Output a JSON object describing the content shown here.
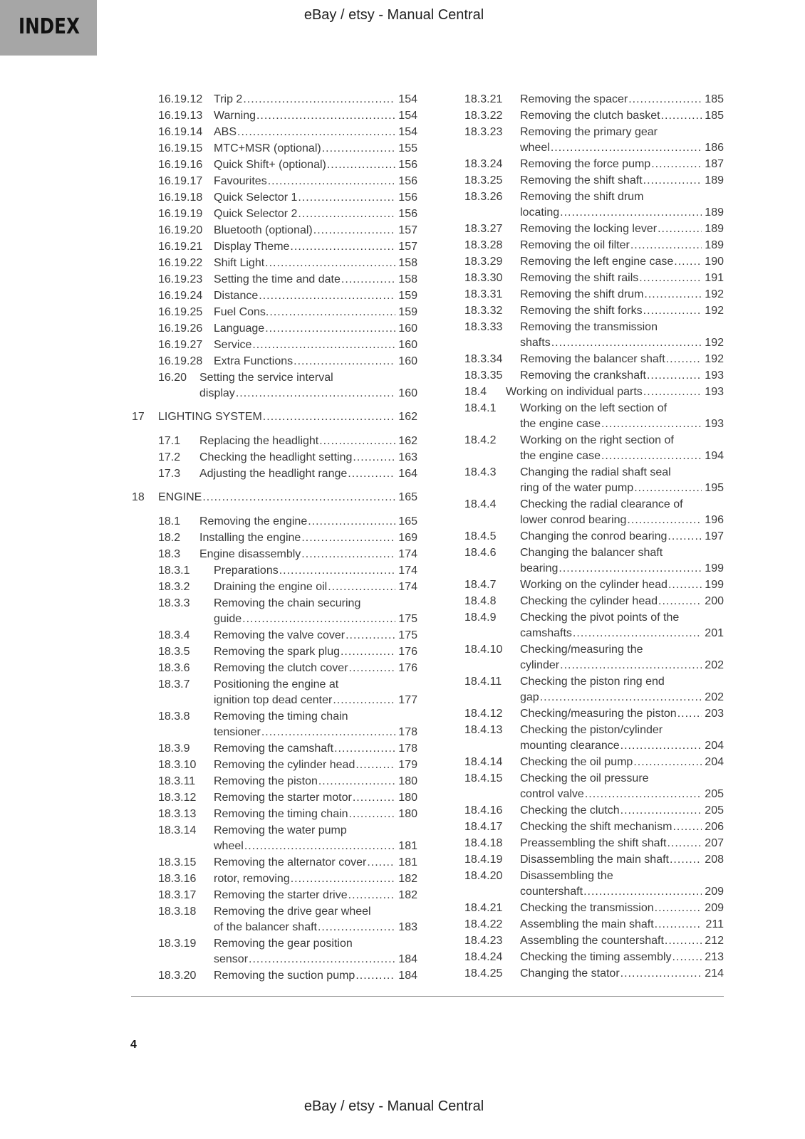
{
  "tab_label": "INDEX",
  "header": "eBay / etsy - Manual Central",
  "footer": "eBay / etsy - Manual Central",
  "page_number": "4",
  "columns": {
    "left": [
      {
        "num": "16.19.12",
        "lines": [
          "Trip 2"
        ],
        "page": "154",
        "level": "l2"
      },
      {
        "num": "16.19.13",
        "lines": [
          "Warning"
        ],
        "page": "154",
        "level": "l2"
      },
      {
        "num": "16.19.14",
        "lines": [
          "ABS"
        ],
        "page": "154",
        "level": "l2"
      },
      {
        "num": "16.19.15",
        "lines": [
          "MTC+MSR (optional)"
        ],
        "page": "155",
        "level": "l2"
      },
      {
        "num": "16.19.16",
        "lines": [
          "Quick Shift+ (optional)"
        ],
        "page": "156",
        "level": "l2"
      },
      {
        "num": "16.19.17",
        "lines": [
          "Favourites"
        ],
        "page": "156",
        "level": "l2"
      },
      {
        "num": "16.19.18",
        "lines": [
          "Quick Selector 1"
        ],
        "page": "156",
        "level": "l2"
      },
      {
        "num": "16.19.19",
        "lines": [
          "Quick Selector 2"
        ],
        "page": "156",
        "level": "l2"
      },
      {
        "num": "16.19.20",
        "lines": [
          "Bluetooth (optional)"
        ],
        "page": "157",
        "level": "l2"
      },
      {
        "num": "16.19.21",
        "lines": [
          "Display Theme"
        ],
        "page": "157",
        "level": "l2"
      },
      {
        "num": "16.19.22",
        "lines": [
          "Shift Light"
        ],
        "page": "158",
        "level": "l2"
      },
      {
        "num": "16.19.23",
        "lines": [
          "Setting the time and date"
        ],
        "page": "158",
        "level": "l2"
      },
      {
        "num": "16.19.24",
        "lines": [
          "Distance"
        ],
        "page": "159",
        "level": "l2"
      },
      {
        "num": "16.19.25",
        "lines": [
          "Fuel Cons."
        ],
        "page": "159",
        "level": "l2"
      },
      {
        "num": "16.19.26",
        "lines": [
          "Language"
        ],
        "page": "160",
        "level": "l2"
      },
      {
        "num": "16.19.27",
        "lines": [
          "Service"
        ],
        "page": "160",
        "level": "l2"
      },
      {
        "num": "16.19.28",
        "lines": [
          "Extra Functions"
        ],
        "page": "160",
        "level": "l2"
      },
      {
        "num": "16.20",
        "lines": [
          "Setting the service interval",
          "display"
        ],
        "page": "160",
        "level": "l1"
      },
      {
        "num": "17",
        "lines": [
          "LIGHTING SYSTEM"
        ],
        "page": "162",
        "level": "ch"
      },
      {
        "num": "17.1",
        "lines": [
          "Replacing the headlight"
        ],
        "page": "162",
        "level": "l1"
      },
      {
        "num": "17.2",
        "lines": [
          "Checking the headlight setting"
        ],
        "page": "163",
        "level": "l1"
      },
      {
        "num": "17.3",
        "lines": [
          "Adjusting the headlight range"
        ],
        "page": "164",
        "level": "l1"
      },
      {
        "num": "18",
        "lines": [
          "ENGINE"
        ],
        "page": "165",
        "level": "ch"
      },
      {
        "num": "18.1",
        "lines": [
          "Removing the engine"
        ],
        "page": "165",
        "level": "l1"
      },
      {
        "num": "18.2",
        "lines": [
          "Installing the engine"
        ],
        "page": "169",
        "level": "l1"
      },
      {
        "num": "18.3",
        "lines": [
          "Engine disassembly"
        ],
        "page": "174",
        "level": "l1"
      },
      {
        "num": "18.3.1",
        "lines": [
          "Preparations"
        ],
        "page": "174",
        "level": "l2"
      },
      {
        "num": "18.3.2",
        "lines": [
          "Draining the engine oil"
        ],
        "page": "174",
        "level": "l2"
      },
      {
        "num": "18.3.3",
        "lines": [
          "Removing the chain securing",
          "guide"
        ],
        "page": "175",
        "level": "l2"
      },
      {
        "num": "18.3.4",
        "lines": [
          "Removing the valve cover"
        ],
        "page": "175",
        "level": "l2"
      },
      {
        "num": "18.3.5",
        "lines": [
          "Removing the spark plug"
        ],
        "page": "176",
        "level": "l2"
      },
      {
        "num": "18.3.6",
        "lines": [
          "Removing the clutch cover"
        ],
        "page": "176",
        "level": "l2"
      },
      {
        "num": "18.3.7",
        "lines": [
          "Positioning the engine at",
          "ignition top dead center"
        ],
        "page": "177",
        "level": "l2"
      },
      {
        "num": "18.3.8",
        "lines": [
          "Removing the timing chain",
          "tensioner"
        ],
        "page": "178",
        "level": "l2"
      },
      {
        "num": "18.3.9",
        "lines": [
          "Removing the camshaft"
        ],
        "page": "178",
        "level": "l2"
      },
      {
        "num": "18.3.10",
        "lines": [
          "Removing the cylinder head"
        ],
        "page": "179",
        "level": "l2"
      },
      {
        "num": "18.3.11",
        "lines": [
          "Removing the piston"
        ],
        "page": "180",
        "level": "l2"
      },
      {
        "num": "18.3.12",
        "lines": [
          "Removing the starter motor"
        ],
        "page": "180",
        "level": "l2"
      },
      {
        "num": "18.3.13",
        "lines": [
          "Removing the timing chain"
        ],
        "page": "180",
        "level": "l2"
      },
      {
        "num": "18.3.14",
        "lines": [
          "Removing the water pump",
          "wheel"
        ],
        "page": "181",
        "level": "l2"
      },
      {
        "num": "18.3.15",
        "lines": [
          "Removing the alternator cover"
        ],
        "page": "181",
        "level": "l2"
      },
      {
        "num": "18.3.16",
        "lines": [
          "rotor, removing"
        ],
        "page": "182",
        "level": "l2"
      },
      {
        "num": "18.3.17",
        "lines": [
          "Removing the starter drive"
        ],
        "page": "182",
        "level": "l2"
      },
      {
        "num": "18.3.18",
        "lines": [
          "Removing the drive gear wheel",
          "of the balancer shaft"
        ],
        "page": "183",
        "level": "l2"
      },
      {
        "num": "18.3.19",
        "lines": [
          "Removing the gear position",
          "sensor"
        ],
        "page": "184",
        "level": "l2"
      },
      {
        "num": "18.3.20",
        "lines": [
          "Removing the suction pump"
        ],
        "page": "184",
        "level": "l2"
      }
    ],
    "right": [
      {
        "num": "18.3.21",
        "lines": [
          "Removing the spacer"
        ],
        "page": "185",
        "level": "l2"
      },
      {
        "num": "18.3.22",
        "lines": [
          "Removing the clutch basket"
        ],
        "page": "185",
        "level": "l2"
      },
      {
        "num": "18.3.23",
        "lines": [
          "Removing the primary gear",
          "wheel"
        ],
        "page": "186",
        "level": "l2"
      },
      {
        "num": "18.3.24",
        "lines": [
          "Removing the force pump"
        ],
        "page": "187",
        "level": "l2"
      },
      {
        "num": "18.3.25",
        "lines": [
          "Removing the shift shaft"
        ],
        "page": "189",
        "level": "l2"
      },
      {
        "num": "18.3.26",
        "lines": [
          "Removing the shift drum",
          "locating"
        ],
        "page": "189",
        "level": "l2"
      },
      {
        "num": "18.3.27",
        "lines": [
          "Removing the locking lever"
        ],
        "page": "189",
        "level": "l2"
      },
      {
        "num": "18.3.28",
        "lines": [
          "Removing the oil filter"
        ],
        "page": "189",
        "level": "l2"
      },
      {
        "num": "18.3.29",
        "lines": [
          "Removing the left engine case"
        ],
        "page": "190",
        "level": "l2"
      },
      {
        "num": "18.3.30",
        "lines": [
          "Removing the shift rails"
        ],
        "page": "191",
        "level": "l2"
      },
      {
        "num": "18.3.31",
        "lines": [
          "Removing the shift drum"
        ],
        "page": "192",
        "level": "l2"
      },
      {
        "num": "18.3.32",
        "lines": [
          "Removing the shift forks"
        ],
        "page": "192",
        "level": "l2"
      },
      {
        "num": "18.3.33",
        "lines": [
          "Removing the transmission",
          "shafts"
        ],
        "page": "192",
        "level": "l2"
      },
      {
        "num": "18.3.34",
        "lines": [
          "Removing the balancer shaft"
        ],
        "page": "192",
        "level": "l2"
      },
      {
        "num": "18.3.35",
        "lines": [
          "Removing the crankshaft"
        ],
        "page": "193",
        "level": "l2"
      },
      {
        "num": "18.4",
        "lines": [
          "Working on individual parts"
        ],
        "page": "193",
        "level": "l1r"
      },
      {
        "num": "18.4.1",
        "lines": [
          "Working on the left section of",
          "the engine case"
        ],
        "page": "193",
        "level": "l2"
      },
      {
        "num": "18.4.2",
        "lines": [
          "Working on the right section of",
          "the engine case"
        ],
        "page": "194",
        "level": "l2"
      },
      {
        "num": "18.4.3",
        "lines": [
          "Changing the radial shaft seal",
          "ring of the water pump"
        ],
        "page": "195",
        "level": "l2"
      },
      {
        "num": "18.4.4",
        "lines": [
          "Checking the radial clearance of",
          "lower conrod bearing"
        ],
        "page": "196",
        "level": "l2"
      },
      {
        "num": "18.4.5",
        "lines": [
          "Changing the conrod bearing"
        ],
        "page": "197",
        "level": "l2"
      },
      {
        "num": "18.4.6",
        "lines": [
          "Changing the balancer shaft",
          "bearing"
        ],
        "page": "199",
        "level": "l2"
      },
      {
        "num": "18.4.7",
        "lines": [
          "Working on the cylinder head"
        ],
        "page": "199",
        "level": "l2"
      },
      {
        "num": "18.4.8",
        "lines": [
          "Checking the cylinder head"
        ],
        "page": "200",
        "level": "l2"
      },
      {
        "num": "18.4.9",
        "lines": [
          "Checking the pivot points of the",
          "camshafts"
        ],
        "page": "201",
        "level": "l2"
      },
      {
        "num": "18.4.10",
        "lines": [
          "Checking/measuring the",
          "cylinder"
        ],
        "page": "202",
        "level": "l2"
      },
      {
        "num": "18.4.11",
        "lines": [
          "Checking the piston ring end",
          "gap"
        ],
        "page": "202",
        "level": "l2"
      },
      {
        "num": "18.4.12",
        "lines": [
          "Checking/measuring the piston"
        ],
        "page": "203",
        "level": "l2"
      },
      {
        "num": "18.4.13",
        "lines": [
          "Checking the piston/cylinder",
          "mounting clearance"
        ],
        "page": "204",
        "level": "l2"
      },
      {
        "num": "18.4.14",
        "lines": [
          "Checking the oil pump"
        ],
        "page": "204",
        "level": "l2"
      },
      {
        "num": "18.4.15",
        "lines": [
          "Checking the oil pressure",
          "control valve"
        ],
        "page": "205",
        "level": "l2"
      },
      {
        "num": "18.4.16",
        "lines": [
          "Checking the clutch"
        ],
        "page": "205",
        "level": "l2"
      },
      {
        "num": "18.4.17",
        "lines": [
          "Checking the shift mechanism"
        ],
        "page": "206",
        "level": "l2"
      },
      {
        "num": "18.4.18",
        "lines": [
          "Preassembling the shift shaft"
        ],
        "page": "207",
        "level": "l2"
      },
      {
        "num": "18.4.19",
        "lines": [
          "Disassembling the main shaft"
        ],
        "page": "208",
        "level": "l2"
      },
      {
        "num": "18.4.20",
        "lines": [
          "Disassembling the",
          "countershaft"
        ],
        "page": "209",
        "level": "l2"
      },
      {
        "num": "18.4.21",
        "lines": [
          "Checking the transmission"
        ],
        "page": "209",
        "level": "l2"
      },
      {
        "num": "18.4.22",
        "lines": [
          "Assembling the main shaft"
        ],
        "page": "211",
        "level": "l2"
      },
      {
        "num": "18.4.23",
        "lines": [
          "Assembling the countershaft"
        ],
        "page": "212",
        "level": "l2"
      },
      {
        "num": "18.4.24",
        "lines": [
          "Checking the timing assembly"
        ],
        "page": "213",
        "level": "l2"
      },
      {
        "num": "18.4.25",
        "lines": [
          "Changing the stator"
        ],
        "page": "214",
        "level": "l2"
      }
    ]
  }
}
